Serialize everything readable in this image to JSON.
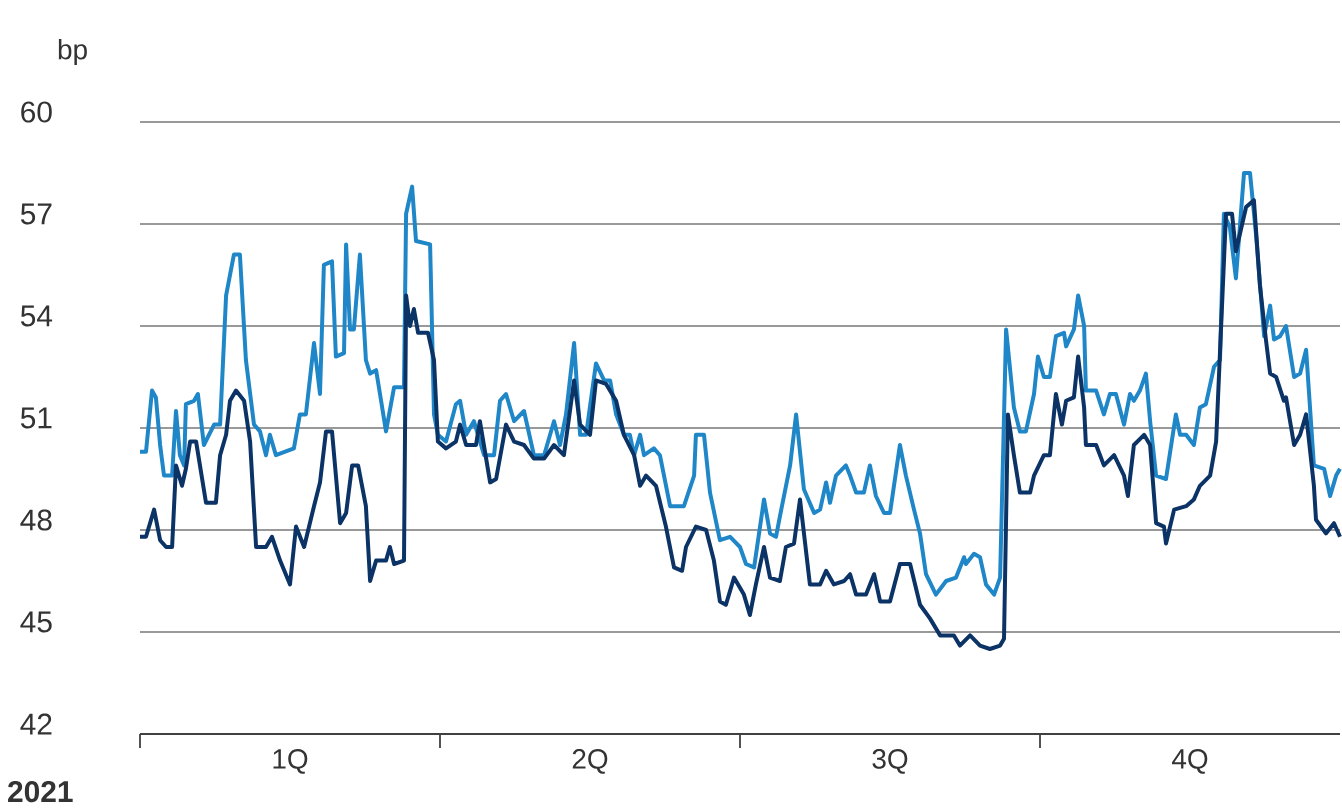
{
  "chart_data": {
    "type": "line",
    "ylabel": "bp",
    "xlabel": "**2021**",
    "xlim": [
      0,
      4
    ],
    "ylim": [
      42,
      60
    ],
    "yticks": [
      42,
      45,
      48,
      51,
      54,
      57,
      60
    ],
    "xticks": [
      {
        "value": 0,
        "label": null
      },
      {
        "value": 0.5,
        "label": "1Q"
      },
      {
        "value": 1,
        "label": null
      },
      {
        "value": 1.5,
        "label": "2Q"
      },
      {
        "value": 2,
        "label": null
      },
      {
        "value": 2.5,
        "label": "3Q"
      },
      {
        "value": 3,
        "label": null
      },
      {
        "value": 3.5,
        "label": "4Q"
      }
    ],
    "grid": "y",
    "series": [
      {
        "color": "#1f86c8",
        "x": [
          0,
          0.02,
          0.04,
          0.053,
          0.067,
          0.08,
          0.107,
          0.12,
          0.133,
          0.147,
          0.153,
          0.18,
          0.193,
          0.213,
          0.247,
          0.267,
          0.287,
          0.313,
          0.333,
          0.353,
          0.38,
          0.4,
          0.42,
          0.433,
          0.453,
          0.513,
          0.533,
          0.553,
          0.58,
          0.6,
          0.613,
          0.64,
          0.653,
          0.68,
          0.687,
          0.7,
          0.713,
          0.733,
          0.753,
          0.767,
          0.787,
          0.8,
          0.82,
          0.847,
          0.88,
          0.887,
          0.907,
          0.92,
          0.967,
          0.98,
          0.993,
          1.02,
          1.053,
          1.067,
          1.087,
          1.113,
          1.147,
          1.18,
          1.2,
          1.22,
          1.247,
          1.28,
          1.313,
          1.347,
          1.38,
          1.4,
          1.42,
          1.447,
          1.467,
          1.487,
          1.52,
          1.547,
          1.567,
          1.587,
          1.613,
          1.633,
          1.647,
          1.667,
          1.68,
          1.713,
          1.733,
          1.767,
          1.813,
          1.847,
          1.853,
          1.88,
          1.9,
          1.933,
          1.967,
          2.0,
          2.02,
          2.047,
          2.08,
          2.1,
          2.12,
          2.133,
          2.167,
          2.187,
          2.213,
          2.247,
          2.267,
          2.287,
          2.3,
          2.32,
          2.353,
          2.367,
          2.387,
          2.413,
          2.433,
          2.453,
          2.48,
          2.5,
          2.533,
          2.553,
          2.58,
          2.6,
          2.62,
          2.653,
          2.687,
          2.72,
          2.747,
          2.753,
          2.78,
          2.8,
          2.82,
          2.847,
          2.867,
          2.887,
          2.913,
          2.933,
          2.953,
          2.98,
          2.993,
          3.013,
          3.033,
          3.053,
          3.08,
          3.087,
          3.113,
          3.127,
          3.147,
          3.153,
          3.187,
          3.213,
          3.233,
          3.253,
          3.28,
          3.3,
          3.313,
          3.333,
          3.353,
          3.367,
          3.387,
          3.42,
          3.453,
          3.467,
          3.487,
          3.513,
          3.533,
          3.553,
          3.58,
          3.6,
          3.613,
          3.633,
          3.653,
          3.68,
          3.7,
          3.72,
          3.747,
          3.767,
          3.78,
          3.8,
          3.82,
          3.847,
          3.867,
          3.887,
          3.913,
          3.947,
          3.967,
          3.987,
          4.0
        ],
        "values": [
          50.3,
          50.3,
          52.1,
          51.9,
          50.5,
          49.6,
          49.6,
          51.5,
          50.2,
          49.9,
          51.7,
          51.8,
          52.0,
          50.5,
          51.1,
          51.1,
          54.9,
          56.1,
          56.1,
          53.0,
          51.1,
          50.9,
          50.2,
          50.8,
          50.2,
          50.4,
          51.4,
          51.4,
          53.5,
          52.0,
          55.8,
          55.9,
          53.1,
          53.2,
          56.4,
          53.9,
          53.9,
          56.1,
          53.0,
          52.6,
          52.7,
          52.0,
          50.9,
          52.2,
          52.2,
          57.3,
          58.1,
          56.5,
          56.4,
          51.4,
          50.8,
          50.6,
          51.7,
          51.8,
          50.8,
          51.2,
          50.2,
          50.2,
          51.8,
          52.0,
          51.2,
          51.5,
          50.2,
          50.2,
          51.2,
          50.5,
          51.4,
          53.5,
          50.8,
          50.8,
          52.9,
          52.4,
          52.4,
          51.4,
          50.8,
          50.8,
          50.2,
          50.8,
          50.2,
          50.4,
          50.2,
          48.7,
          48.7,
          49.6,
          50.8,
          50.8,
          49.1,
          47.7,
          47.8,
          47.5,
          47.0,
          46.9,
          48.9,
          47.9,
          47.8,
          48.4,
          49.9,
          51.4,
          49.2,
          48.5,
          48.6,
          49.4,
          48.8,
          49.6,
          49.9,
          49.6,
          49.1,
          49.1,
          49.9,
          49.0,
          48.5,
          48.5,
          50.5,
          49.6,
          48.6,
          47.9,
          46.7,
          46.1,
          46.5,
          46.6,
          47.2,
          47.0,
          47.3,
          47.2,
          46.4,
          46.1,
          46.6,
          53.9,
          51.6,
          50.9,
          50.9,
          52.0,
          53.1,
          52.5,
          52.5,
          53.7,
          53.8,
          53.4,
          53.9,
          54.9,
          54.0,
          52.1,
          52.1,
          51.4,
          52.0,
          52.0,
          51.1,
          52.0,
          51.8,
          52.1,
          52.6,
          51.2,
          49.6,
          49.5,
          51.4,
          50.8,
          50.8,
          50.5,
          51.6,
          51.7,
          52.8,
          53.0,
          57.3,
          56.9,
          55.4,
          58.5,
          58.5,
          56.7,
          53.7,
          54.6,
          53.6,
          53.7,
          54.0,
          52.5,
          52.6,
          53.3,
          49.9,
          49.8,
          49.0,
          49.6,
          49.8
        ]
      },
      {
        "color": "#0b3366",
        "x": [
          0,
          0.02,
          0.047,
          0.067,
          0.087,
          0.107,
          0.12,
          0.14,
          0.153,
          0.167,
          0.187,
          0.22,
          0.253,
          0.267,
          0.287,
          0.3,
          0.32,
          0.347,
          0.367,
          0.387,
          0.42,
          0.44,
          0.467,
          0.5,
          0.52,
          0.547,
          0.58,
          0.6,
          0.62,
          0.64,
          0.667,
          0.687,
          0.707,
          0.727,
          0.753,
          0.767,
          0.787,
          0.82,
          0.833,
          0.847,
          0.88,
          0.887,
          0.9,
          0.913,
          0.927,
          0.96,
          0.98,
          0.993,
          1.02,
          1.053,
          1.067,
          1.087,
          1.12,
          1.133,
          1.167,
          1.187,
          1.22,
          1.247,
          1.28,
          1.313,
          1.347,
          1.38,
          1.413,
          1.447,
          1.467,
          1.5,
          1.52,
          1.553,
          1.587,
          1.613,
          1.647,
          1.667,
          1.687,
          1.72,
          1.753,
          1.78,
          1.807,
          1.82,
          1.853,
          1.887,
          1.913,
          1.933,
          1.953,
          1.98,
          2.013,
          2.033,
          2.053,
          2.08,
          2.1,
          2.133,
          2.153,
          2.18,
          2.2,
          2.233,
          2.267,
          2.287,
          2.313,
          2.347,
          2.367,
          2.387,
          2.42,
          2.447,
          2.467,
          2.5,
          2.533,
          2.567,
          2.6,
          2.633,
          2.667,
          2.713,
          2.733,
          2.767,
          2.8,
          2.833,
          2.867,
          2.88,
          2.893,
          2.913,
          2.933,
          2.967,
          2.98,
          3.013,
          3.033,
          3.053,
          3.073,
          3.087,
          3.113,
          3.127,
          3.147,
          3.153,
          3.187,
          3.213,
          3.247,
          3.28,
          3.293,
          3.313,
          3.347,
          3.367,
          3.387,
          3.413,
          3.42,
          3.447,
          3.487,
          3.513,
          3.533,
          3.567,
          3.587,
          3.62,
          3.64,
          3.653,
          3.687,
          3.713,
          3.733,
          3.753,
          3.767,
          3.787,
          3.813,
          3.82,
          3.847,
          3.867,
          3.887,
          3.913,
          3.92,
          3.953,
          3.98,
          4.0
        ],
        "values": [
          47.8,
          47.8,
          48.6,
          47.7,
          47.5,
          47.5,
          49.9,
          49.3,
          49.8,
          50.6,
          50.6,
          48.8,
          48.8,
          50.2,
          50.8,
          51.8,
          52.1,
          51.8,
          50.6,
          47.5,
          47.5,
          47.8,
          47.1,
          46.4,
          48.1,
          47.5,
          48.7,
          49.4,
          50.9,
          50.9,
          48.2,
          48.5,
          49.9,
          49.9,
          48.7,
          46.5,
          47.1,
          47.1,
          47.5,
          47.0,
          47.1,
          54.9,
          54.0,
          54.5,
          53.8,
          53.8,
          53.0,
          50.6,
          50.4,
          50.6,
          51.1,
          50.5,
          50.5,
          51.2,
          49.4,
          49.5,
          51.1,
          50.6,
          50.5,
          50.1,
          50.1,
          50.5,
          50.2,
          52.4,
          51.1,
          50.8,
          52.4,
          52.3,
          51.8,
          50.8,
          50.2,
          49.3,
          49.6,
          49.3,
          48.1,
          46.9,
          46.8,
          47.5,
          48.1,
          48.0,
          47.1,
          45.9,
          45.8,
          46.6,
          46.1,
          45.5,
          46.4,
          47.5,
          46.6,
          46.5,
          47.5,
          47.6,
          48.9,
          46.4,
          46.4,
          46.8,
          46.4,
          46.5,
          46.7,
          46.1,
          46.1,
          46.7,
          45.9,
          45.9,
          47.0,
          47.0,
          45.8,
          45.4,
          44.9,
          44.9,
          44.6,
          44.9,
          44.6,
          44.5,
          44.6,
          44.8,
          51.4,
          50.2,
          49.1,
          49.1,
          49.6,
          50.2,
          50.2,
          52.0,
          51.1,
          51.8,
          51.9,
          53.1,
          51.6,
          50.5,
          50.5,
          49.9,
          50.2,
          49.6,
          49.0,
          50.5,
          50.8,
          50.5,
          48.2,
          48.1,
          47.6,
          48.6,
          48.7,
          48.9,
          49.3,
          49.6,
          50.6,
          57.3,
          57.3,
          56.2,
          57.5,
          57.7,
          55.2,
          53.6,
          52.6,
          52.5,
          51.8,
          51.9,
          50.5,
          50.8,
          51.4,
          49.3,
          48.3,
          47.9,
          48.2,
          47.8
        ]
      }
    ]
  }
}
